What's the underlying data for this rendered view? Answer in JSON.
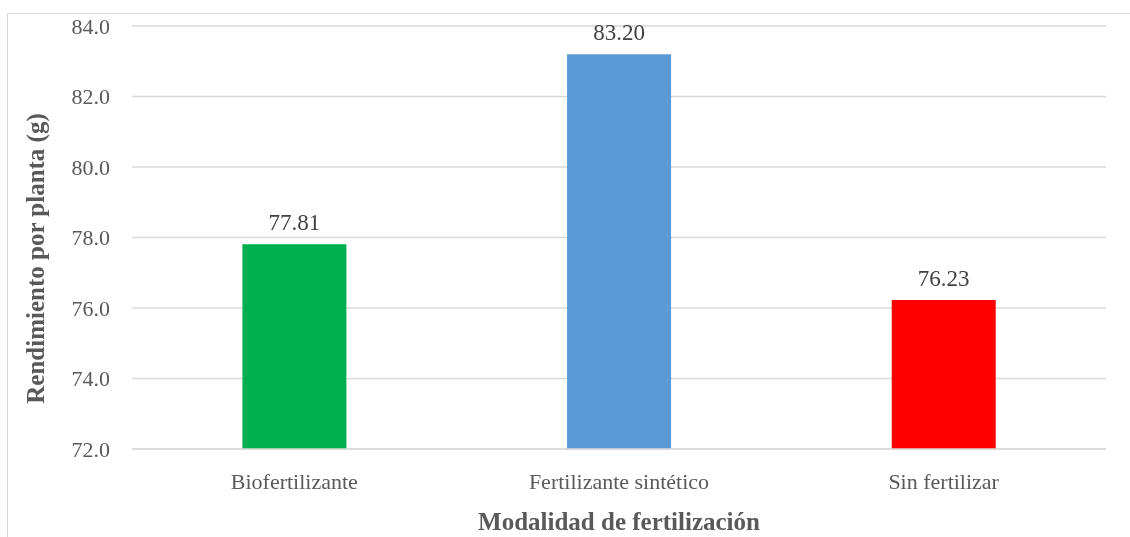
{
  "chart_data": {
    "type": "bar",
    "categories": [
      "Biofertilizante",
      "Fertilizante sintético",
      "Sin fertilizar"
    ],
    "values": [
      77.81,
      83.2,
      76.23
    ],
    "colors": [
      "#00b050",
      "#5b9bd5",
      "#ff0000"
    ],
    "value_labels": [
      "77.81",
      "83.20",
      "76.23"
    ],
    "ylim": [
      72,
      84
    ],
    "yticks": [
      {
        "value": 72,
        "label": "72.0"
      },
      {
        "value": 74,
        "label": "74.0"
      },
      {
        "value": 76,
        "label": "76.0"
      },
      {
        "value": 78,
        "label": "78.0"
      },
      {
        "value": 80,
        "label": "80.0"
      },
      {
        "value": 82,
        "label": "82.0"
      },
      {
        "value": 84,
        "label": "84.0"
      }
    ],
    "grid": "y",
    "xlabel": "Modalidad de fertilización",
    "ylabel": "Rendimiento por planta (g)"
  }
}
